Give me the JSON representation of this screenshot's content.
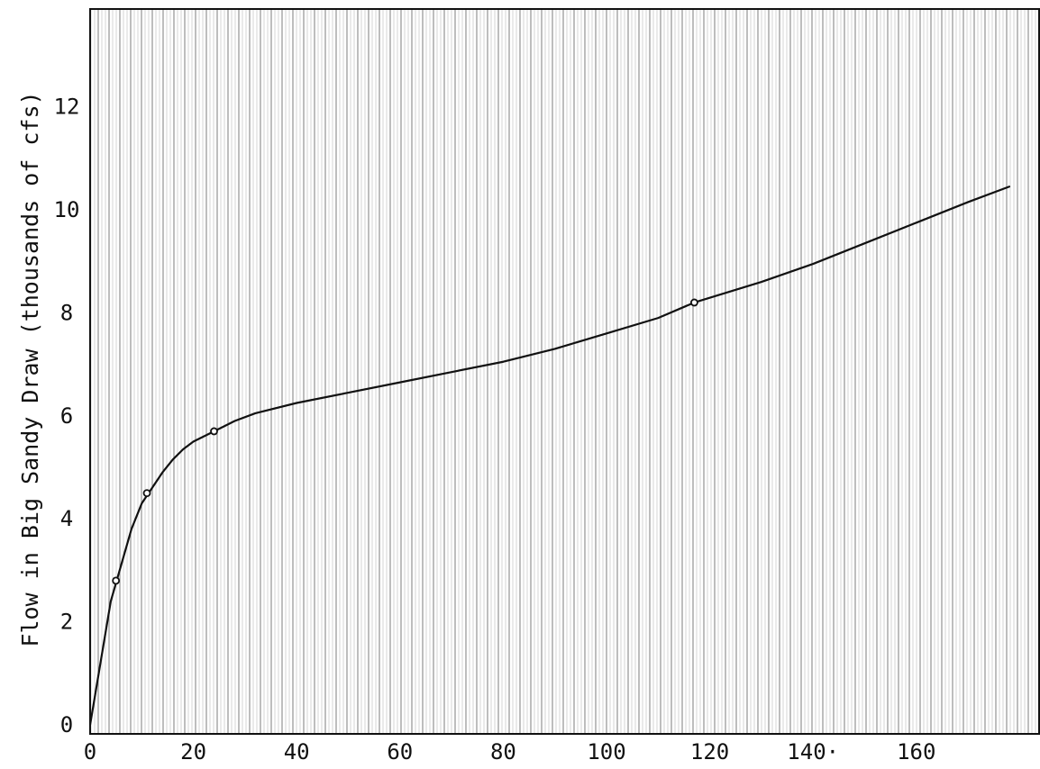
{
  "chart_data": {
    "type": "line",
    "title": "",
    "xlabel": "",
    "ylabel": "Flow in Big Sandy Draw (thousands of cfs)",
    "xlim": [
      0,
      180
    ],
    "ylim": [
      0,
      14
    ],
    "x_ticks": [
      0,
      20,
      40,
      60,
      80,
      100,
      120,
      140,
      160
    ],
    "x_tick_labels": [
      "0",
      "20",
      "40",
      "60",
      "80",
      "100",
      "120",
      "140·",
      "160"
    ],
    "y_ticks": [
      0,
      2,
      4,
      6,
      8,
      10,
      12
    ],
    "y_tick_labels": [
      "0",
      "2",
      "4",
      "6",
      "8",
      "10",
      "12"
    ],
    "grid": "dense vertical hatching",
    "legend": "none",
    "colors": {
      "line": "#111111",
      "hatch": "#8a8a8a",
      "background": "#ffffff"
    },
    "series": [
      {
        "values_xy": [
          [
            0,
            0
          ],
          [
            2,
            1.2
          ],
          [
            4,
            2.4
          ],
          [
            6,
            3.1
          ],
          [
            8,
            3.8
          ],
          [
            10,
            4.3
          ],
          [
            12,
            4.6
          ],
          [
            14,
            4.9
          ],
          [
            16,
            5.15
          ],
          [
            18,
            5.35
          ],
          [
            20,
            5.5
          ],
          [
            24,
            5.7
          ],
          [
            28,
            5.9
          ],
          [
            32,
            6.05
          ],
          [
            40,
            6.25
          ],
          [
            50,
            6.45
          ],
          [
            60,
            6.65
          ],
          [
            70,
            6.85
          ],
          [
            80,
            7.05
          ],
          [
            90,
            7.3
          ],
          [
            100,
            7.6
          ],
          [
            110,
            7.9
          ],
          [
            117,
            8.2
          ],
          [
            130,
            8.6
          ],
          [
            140,
            8.95
          ],
          [
            150,
            9.35
          ],
          [
            160,
            9.75
          ],
          [
            170,
            10.15
          ],
          [
            178,
            10.45
          ]
        ]
      }
    ],
    "marked_points": [
      [
        5,
        2.8
      ],
      [
        11,
        4.5
      ],
      [
        24,
        5.7
      ],
      [
        117,
        8.2
      ]
    ]
  }
}
